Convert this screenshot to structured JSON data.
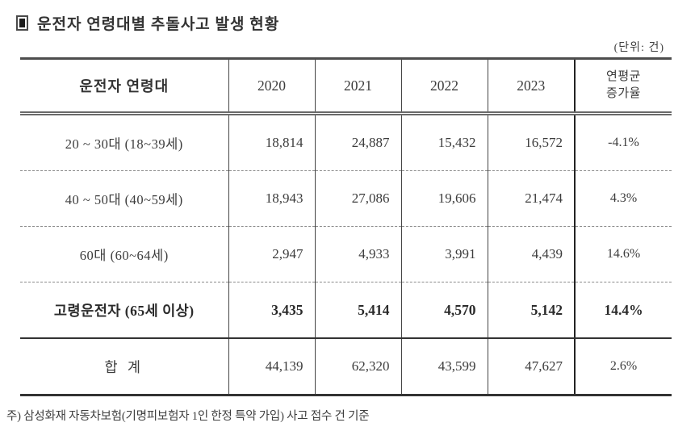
{
  "page": {
    "title": "운전자 연령대별 추돌사고 발생 현황",
    "unit_note": "(단위: 건)",
    "footnote": "주) 삼성화재 자동차보험(기명피보험자 1인 한정 특약 가입) 사고 접수 건 기준"
  },
  "table": {
    "header": {
      "age_group": "운전자 연령대",
      "years": [
        "2020",
        "2021",
        "2022",
        "2023"
      ],
      "avg_line1": "연평균",
      "avg_line2": "증가율"
    },
    "rows": [
      {
        "label": "20 ~ 30대 (18~39세)",
        "values": [
          "18,814",
          "24,887",
          "15,432",
          "16,572",
          "-4.1%"
        ]
      },
      {
        "label": "40 ~ 50대 (40~59세)",
        "values": [
          "18,943",
          "27,086",
          "19,606",
          "21,474",
          "4.3%"
        ]
      },
      {
        "label": "60대 (60~64세)",
        "values": [
          "2,947",
          "4,933",
          "3,991",
          "4,439",
          "14.6%"
        ]
      },
      {
        "label": "고령운전자 (65세 이상)",
        "values": [
          "3,435",
          "5,414",
          "4,570",
          "5,142",
          "14.4%"
        ],
        "bold": true
      },
      {
        "label": "합 계",
        "values": [
          "44,139",
          "62,320",
          "43,599",
          "47,627",
          "2.6%"
        ]
      }
    ]
  },
  "colors": {
    "text": "#3c3c3c",
    "rule": "#4a4a4a"
  }
}
